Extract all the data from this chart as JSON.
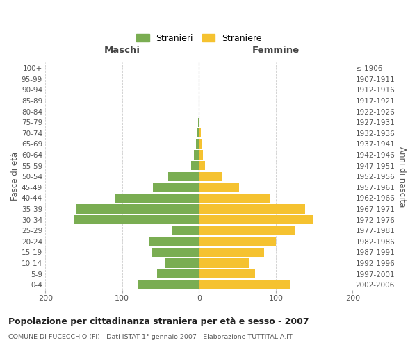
{
  "age_groups": [
    "0-4",
    "5-9",
    "10-14",
    "15-19",
    "20-24",
    "25-29",
    "30-34",
    "35-39",
    "40-44",
    "45-49",
    "50-54",
    "55-59",
    "60-64",
    "65-69",
    "70-74",
    "75-79",
    "80-84",
    "85-89",
    "90-94",
    "95-99",
    "100+"
  ],
  "birth_years": [
    "2002-2006",
    "1997-2001",
    "1992-1996",
    "1987-1991",
    "1982-1986",
    "1977-1981",
    "1972-1976",
    "1967-1971",
    "1962-1966",
    "1957-1961",
    "1952-1956",
    "1947-1951",
    "1942-1946",
    "1937-1941",
    "1932-1936",
    "1927-1931",
    "1922-1926",
    "1917-1921",
    "1912-1916",
    "1907-1911",
    "≤ 1906"
  ],
  "males": [
    80,
    55,
    45,
    62,
    65,
    35,
    162,
    160,
    110,
    60,
    40,
    10,
    7,
    4,
    3,
    1,
    0,
    0,
    0,
    0,
    0
  ],
  "females": [
    118,
    73,
    65,
    85,
    100,
    125,
    148,
    138,
    92,
    52,
    30,
    8,
    5,
    4,
    2,
    1,
    0,
    0,
    0,
    0,
    0
  ],
  "male_color": "#7aad52",
  "female_color": "#f5c230",
  "background_color": "#ffffff",
  "grid_color": "#cccccc",
  "title": "Popolazione per cittadinanza straniera per età e sesso - 2007",
  "subtitle": "COMUNE DI FUCECCHIO (FI) - Dati ISTAT 1° gennaio 2007 - Elaborazione TUTTITALIA.IT",
  "xlabel_left": "Maschi",
  "xlabel_right": "Femmine",
  "ylabel_left": "Fasce di età",
  "ylabel_right": "Anni di nascita",
  "legend_stranieri": "Stranieri",
  "legend_straniere": "Straniere",
  "xlim": 200,
  "bar_height": 0.85
}
